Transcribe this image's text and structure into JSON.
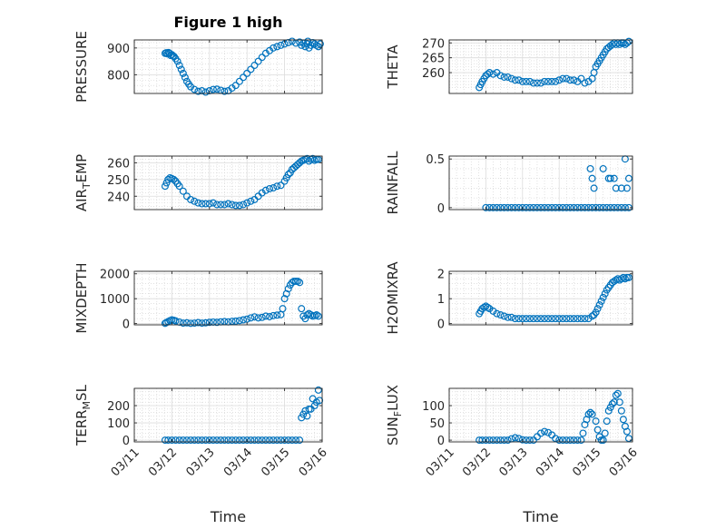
{
  "figure_title": "Figure 1 high",
  "x_title": "Time",
  "x_tick_labels": [
    "03/11",
    "03/12",
    "03/13",
    "03/14",
    "03/15",
    "03/16"
  ],
  "marker_color": "#0072BD",
  "chart_data": [
    {
      "type": "scatter",
      "title": "Figure 1 high",
      "ylabel": "PRESSURE",
      "ylim": [
        730,
        930
      ],
      "yticks": [
        800,
        900
      ],
      "xlim": [
        0,
        5
      ],
      "grid": true,
      "x": [
        0.82,
        0.85,
        0.88,
        0.91,
        0.94,
        0.97,
        1.0,
        1.03,
        1.06,
        1.1,
        1.15,
        1.2,
        1.25,
        1.3,
        1.35,
        1.4,
        1.45,
        1.5,
        1.6,
        1.7,
        1.8,
        1.9,
        2.0,
        2.1,
        2.2,
        2.3,
        2.4,
        2.5,
        2.6,
        2.7,
        2.8,
        2.9,
        3.0,
        3.1,
        3.2,
        3.3,
        3.4,
        3.5,
        3.6,
        3.7,
        3.8,
        3.9,
        4.0,
        4.1,
        4.2,
        4.3,
        4.4,
        4.45,
        4.5,
        4.55,
        4.6,
        4.62,
        4.65,
        4.7,
        4.75,
        4.8,
        4.85,
        4.9,
        4.95
      ],
      "y": [
        880,
        882,
        878,
        883,
        880,
        872,
        875,
        870,
        868,
        860,
        850,
        835,
        820,
        805,
        790,
        775,
        765,
        755,
        745,
        738,
        740,
        735,
        740,
        745,
        746,
        742,
        738,
        740,
        750,
        760,
        775,
        790,
        805,
        820,
        835,
        850,
        865,
        880,
        890,
        900,
        905,
        910,
        915,
        920,
        925,
        918,
        922,
        910,
        918,
        905,
        915,
        925,
        900,
        910,
        920,
        915,
        910,
        905,
        915
      ]
    },
    {
      "type": "scatter",
      "ylabel": "THETA",
      "ylim": [
        253,
        271
      ],
      "yticks": [
        260,
        265,
        270
      ],
      "xlim": [
        0,
        5
      ],
      "grid": true,
      "x": [
        0.82,
        0.86,
        0.9,
        0.95,
        1.0,
        1.05,
        1.1,
        1.2,
        1.3,
        1.4,
        1.5,
        1.6,
        1.7,
        1.8,
        1.9,
        2.0,
        2.1,
        2.2,
        2.3,
        2.4,
        2.5,
        2.6,
        2.7,
        2.8,
        2.9,
        3.0,
        3.1,
        3.2,
        3.3,
        3.4,
        3.5,
        3.6,
        3.7,
        3.8,
        3.9,
        3.95,
        4.0,
        4.05,
        4.1,
        4.15,
        4.2,
        4.25,
        4.3,
        4.35,
        4.4,
        4.45,
        4.5,
        4.55,
        4.6,
        4.65,
        4.7,
        4.75,
        4.8,
        4.85,
        4.9
      ],
      "y": [
        255,
        256,
        257,
        258,
        259,
        259.5,
        260,
        259.5,
        260,
        259,
        258.5,
        258.5,
        258,
        257.5,
        257.5,
        257,
        257,
        257,
        256.5,
        256.5,
        256.5,
        257,
        257,
        257,
        257,
        257.5,
        258,
        258,
        257.5,
        257.5,
        257,
        258,
        256.5,
        257,
        258,
        260,
        262,
        263,
        264,
        265,
        266,
        267,
        268,
        268.5,
        269,
        269.5,
        270,
        269.5,
        270,
        269.5,
        270,
        270,
        269.5,
        270,
        270.5
      ]
    },
    {
      "type": "scatter",
      "ylabel": "AIR_TEMP",
      "ylim": [
        232,
        264
      ],
      "yticks": [
        240,
        250,
        260
      ],
      "xlim": [
        0,
        5
      ],
      "grid": true,
      "x": [
        0.82,
        0.86,
        0.9,
        0.95,
        1.0,
        1.05,
        1.1,
        1.15,
        1.2,
        1.3,
        1.4,
        1.5,
        1.6,
        1.7,
        1.8,
        1.9,
        2.0,
        2.1,
        2.2,
        2.3,
        2.4,
        2.5,
        2.6,
        2.7,
        2.8,
        2.9,
        3.0,
        3.1,
        3.2,
        3.3,
        3.4,
        3.5,
        3.6,
        3.7,
        3.8,
        3.9,
        4.0,
        4.05,
        4.1,
        4.15,
        4.2,
        4.25,
        4.3,
        4.35,
        4.4,
        4.45,
        4.5,
        4.55,
        4.6,
        4.65,
        4.7,
        4.75,
        4.8,
        4.85,
        4.9
      ],
      "y": [
        246,
        248,
        250,
        251,
        250.5,
        250,
        249,
        247.5,
        246,
        243,
        240,
        238,
        237,
        236,
        235.5,
        235.5,
        235.5,
        236,
        235,
        235,
        235,
        235.5,
        235,
        234.5,
        234.5,
        235,
        236,
        237,
        238,
        240,
        242,
        243.5,
        244.5,
        245,
        246,
        246.5,
        249,
        251,
        253,
        254,
        256,
        257,
        258,
        259,
        260,
        261,
        261.5,
        262,
        262.5,
        261,
        262,
        262.5,
        261.5,
        262,
        262
      ]
    },
    {
      "type": "scatter",
      "ylabel": "RAINFALL",
      "ylim": [
        -0.02,
        0.53
      ],
      "yticks": [
        0,
        0.5
      ],
      "xlim": [
        0,
        5
      ],
      "grid": true,
      "x": [
        1.0,
        1.1,
        1.2,
        1.3,
        1.4,
        1.5,
        1.6,
        1.7,
        1.8,
        1.9,
        2.0,
        2.1,
        2.2,
        2.3,
        2.4,
        2.5,
        2.6,
        2.7,
        2.8,
        2.9,
        3.0,
        3.1,
        3.2,
        3.3,
        3.4,
        3.5,
        3.6,
        3.7,
        3.8,
        3.9,
        4.0,
        4.1,
        4.2,
        4.3,
        4.4,
        4.5,
        4.6,
        4.7,
        4.8,
        4.9,
        3.85,
        3.9,
        3.95,
        4.2,
        4.35,
        4.4,
        4.5,
        4.55,
        4.7,
        4.8,
        4.85,
        4.9
      ],
      "y": [
        0,
        0,
        0,
        0,
        0,
        0,
        0,
        0,
        0,
        0,
        0,
        0,
        0,
        0,
        0,
        0,
        0,
        0,
        0,
        0,
        0,
        0,
        0,
        0,
        0,
        0,
        0,
        0,
        0,
        0,
        0,
        0,
        0,
        0,
        0,
        0,
        0,
        0,
        0,
        0,
        0.4,
        0.3,
        0.2,
        0.4,
        0.3,
        0.3,
        0.3,
        0.2,
        0.2,
        0.5,
        0.2,
        0.3
      ]
    },
    {
      "type": "scatter",
      "ylabel": "MIXDEPTH",
      "ylim": [
        -50,
        2100
      ],
      "yticks": [
        0,
        1000,
        2000
      ],
      "xlim": [
        0,
        5
      ],
      "grid": true,
      "x": [
        0.82,
        0.85,
        0.9,
        0.95,
        1.0,
        1.05,
        1.1,
        1.2,
        1.3,
        1.4,
        1.5,
        1.6,
        1.7,
        1.8,
        1.9,
        2.0,
        2.1,
        2.2,
        2.3,
        2.4,
        2.5,
        2.6,
        2.7,
        2.8,
        2.9,
        3.0,
        3.1,
        3.2,
        3.3,
        3.4,
        3.5,
        3.6,
        3.7,
        3.8,
        3.9,
        3.95,
        4.0,
        4.05,
        4.1,
        4.15,
        4.2,
        4.25,
        4.3,
        4.35,
        4.4,
        4.45,
        4.5,
        4.55,
        4.6,
        4.65,
        4.7,
        4.75,
        4.8,
        4.85,
        4.9
      ],
      "y": [
        10,
        40,
        80,
        120,
        150,
        130,
        110,
        60,
        20,
        30,
        10,
        20,
        40,
        20,
        30,
        50,
        60,
        50,
        70,
        80,
        70,
        90,
        100,
        120,
        150,
        180,
        230,
        270,
        230,
        250,
        300,
        280,
        320,
        340,
        360,
        600,
        1000,
        1200,
        1400,
        1550,
        1650,
        1700,
        1700,
        1700,
        1650,
        600,
        300,
        200,
        350,
        400,
        350,
        300,
        320,
        350,
        300
      ]
    },
    {
      "type": "scatter",
      "ylabel": "H2OMIXRA",
      "ylim": [
        -0.05,
        2.1
      ],
      "yticks": [
        0,
        1,
        2
      ],
      "xlim": [
        0,
        5
      ],
      "grid": true,
      "x": [
        0.82,
        0.86,
        0.9,
        0.95,
        1.0,
        1.05,
        1.1,
        1.2,
        1.3,
        1.4,
        1.5,
        1.6,
        1.7,
        1.8,
        1.9,
        2.0,
        2.1,
        2.2,
        2.3,
        2.4,
        2.5,
        2.6,
        2.7,
        2.8,
        2.9,
        3.0,
        3.1,
        3.2,
        3.3,
        3.4,
        3.5,
        3.6,
        3.7,
        3.8,
        3.9,
        3.95,
        4.0,
        4.05,
        4.1,
        4.15,
        4.2,
        4.25,
        4.3,
        4.35,
        4.4,
        4.45,
        4.5,
        4.55,
        4.6,
        4.65,
        4.7,
        4.75,
        4.8,
        4.85,
        4.9
      ],
      "y": [
        0.4,
        0.5,
        0.6,
        0.65,
        0.7,
        0.65,
        0.6,
        0.5,
        0.4,
        0.35,
        0.3,
        0.25,
        0.25,
        0.2,
        0.2,
        0.2,
        0.2,
        0.2,
        0.2,
        0.2,
        0.2,
        0.2,
        0.2,
        0.2,
        0.2,
        0.2,
        0.2,
        0.2,
        0.2,
        0.2,
        0.2,
        0.2,
        0.2,
        0.2,
        0.3,
        0.35,
        0.45,
        0.6,
        0.75,
        0.9,
        1.05,
        1.2,
        1.35,
        1.45,
        1.55,
        1.65,
        1.7,
        1.75,
        1.8,
        1.75,
        1.8,
        1.85,
        1.8,
        1.85,
        1.85
      ]
    },
    {
      "type": "scatter",
      "ylabel": "TERR_MSL",
      "ylim": [
        -10,
        300
      ],
      "yticks": [
        0,
        100,
        200
      ],
      "xlim": [
        0,
        5
      ],
      "grid": true,
      "x": [
        0.82,
        0.9,
        1.0,
        1.1,
        1.2,
        1.3,
        1.4,
        1.5,
        1.6,
        1.7,
        1.8,
        1.9,
        2.0,
        2.1,
        2.2,
        2.3,
        2.4,
        2.5,
        2.6,
        2.7,
        2.8,
        2.9,
        3.0,
        3.1,
        3.2,
        3.3,
        3.4,
        3.5,
        3.6,
        3.7,
        3.8,
        3.9,
        4.0,
        4.1,
        4.2,
        4.3,
        4.4,
        4.45,
        4.5,
        4.55,
        4.6,
        4.65,
        4.7,
        4.75,
        4.8,
        4.85,
        4.9,
        4.93
      ],
      "y": [
        0,
        0,
        0,
        0,
        0,
        0,
        0,
        0,
        0,
        0,
        0,
        0,
        0,
        0,
        0,
        0,
        0,
        0,
        0,
        0,
        0,
        0,
        0,
        0,
        0,
        0,
        0,
        0,
        0,
        0,
        0,
        0,
        0,
        0,
        0,
        0,
        0,
        130,
        150,
        170,
        140,
        180,
        180,
        240,
        200,
        220,
        290,
        230
      ]
    },
    {
      "type": "scatter",
      "ylabel": "SUN_FLUX",
      "ylim": [
        -5,
        150
      ],
      "yticks": [
        0,
        50,
        100
      ],
      "xlim": [
        0,
        5
      ],
      "grid": true,
      "x": [
        0.82,
        0.9,
        1.0,
        1.1,
        1.2,
        1.3,
        1.4,
        1.5,
        1.6,
        1.7,
        1.8,
        1.9,
        2.0,
        2.1,
        2.2,
        2.3,
        2.4,
        2.5,
        2.6,
        2.7,
        2.8,
        2.9,
        3.0,
        3.1,
        3.2,
        3.3,
        3.4,
        3.5,
        3.6,
        3.65,
        3.7,
        3.75,
        3.8,
        3.85,
        3.9,
        4.0,
        4.05,
        4.1,
        4.15,
        4.2,
        4.25,
        4.3,
        4.35,
        4.4,
        4.45,
        4.5,
        4.55,
        4.6,
        4.65,
        4.7,
        4.75,
        4.8,
        4.85,
        4.9
      ],
      "y": [
        0,
        0,
        0,
        0,
        0,
        0,
        0,
        0,
        0,
        4,
        7,
        5,
        1,
        0,
        0,
        0,
        10,
        20,
        25,
        22,
        15,
        5,
        0,
        0,
        0,
        0,
        0,
        0,
        0,
        20,
        45,
        60,
        75,
        80,
        75,
        55,
        30,
        10,
        0,
        0,
        20,
        55,
        85,
        95,
        105,
        110,
        130,
        135,
        110,
        85,
        60,
        40,
        25,
        5
      ]
    }
  ]
}
